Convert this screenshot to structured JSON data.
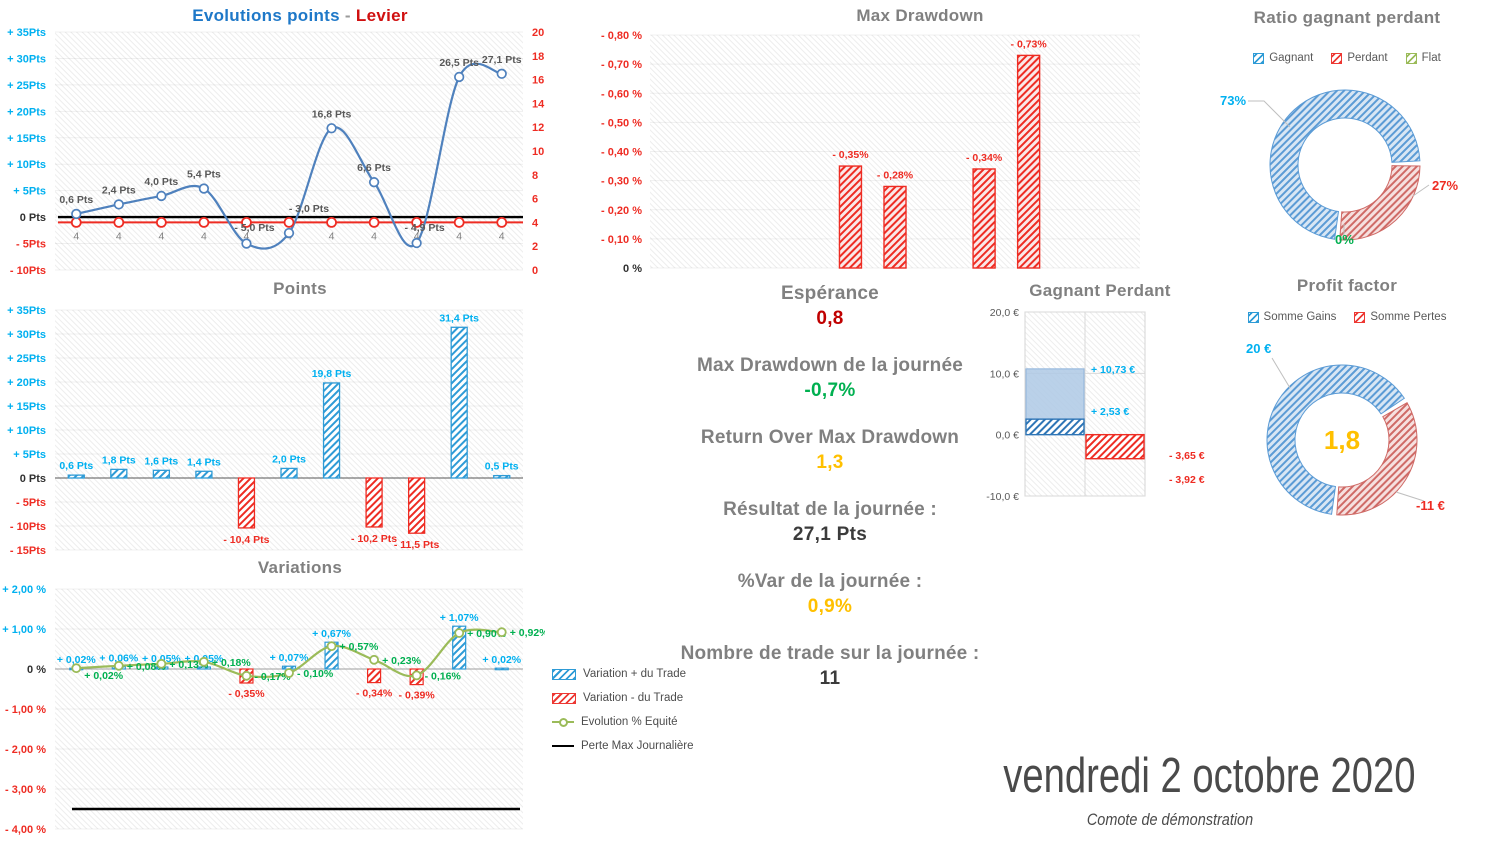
{
  "colors": {
    "cyan": "#00B0F0",
    "blue_bar": "#2E9BD6",
    "blue_line": "#4F81BD",
    "blue_dark": "#2E75B6",
    "red": "#EE2C23",
    "red_dark": "#C00000",
    "pink_bg": "#FAE8E8",
    "green": "#00B050",
    "olive": "#9BBB59",
    "gold": "#FFC000",
    "gray_title": "#808080",
    "gray_label": "#7F7F7F",
    "dark": "#404040",
    "slate": "#595959",
    "donut_blue": "#5B9BD5",
    "donut_blue_bg": "#D8E6F4",
    "donut_red": "#CF6A66",
    "donut_red_bg": "#F6E0DF",
    "gagnant_solid": "#AEC9E5"
  },
  "chart_data": [
    {
      "id": "evolutions",
      "type": "line",
      "title_blue": "Evolutions points",
      "title_sep": " - ",
      "title_red": "Levier",
      "y_left": {
        "min": -10,
        "max": 35,
        "step": 5,
        "ticks": [
          35,
          30,
          25,
          20,
          15,
          10,
          5,
          0,
          -5,
          -10
        ],
        "labels": [
          "+ 35Pts",
          "+ 30Pts",
          "+ 25Pts",
          "+ 20Pts",
          "+ 15Pts",
          "+ 10Pts",
          "+ 5Pts",
          "0 Pts",
          "- 5Pts",
          "- 10Pts"
        ]
      },
      "y_right": {
        "min": 0,
        "max": 20,
        "step": 2,
        "ticks": [
          20,
          18,
          16,
          14,
          12,
          10,
          8,
          6,
          4,
          2,
          0
        ],
        "labels": [
          "20",
          "18",
          "16",
          "14",
          "12",
          "10",
          "8",
          "6",
          "4",
          "2",
          "0"
        ]
      },
      "series_points": {
        "values": [
          0.6,
          2.4,
          4.0,
          5.4,
          -5.0,
          -3.0,
          16.8,
          6.6,
          -4.9,
          26.5,
          27.1
        ],
        "labels": [
          "0,6 Pts",
          "2,4 Pts",
          "4,0 Pts",
          "5,4 Pts",
          "- 5,0 Pts",
          "- 3,0 Pts",
          "16,8 Pts",
          "6,6 Pts",
          "- 4,9 Pts",
          "26,5 Pts",
          "27,1 Pts"
        ],
        "label_pos": [
          "above",
          "above",
          "above",
          "above",
          "left-low",
          "on-zero",
          "above",
          "above",
          "left-low",
          "above",
          "above"
        ]
      },
      "series_levier": {
        "value": 4,
        "label": "4"
      },
      "zero_line": 0
    },
    {
      "id": "points",
      "type": "bar",
      "title": "Points",
      "y": {
        "min": -15,
        "max": 35,
        "step": 5,
        "ticks": [
          35,
          30,
          25,
          20,
          15,
          10,
          5,
          0,
          -5,
          -10,
          -15
        ],
        "labels": [
          "+ 35Pts",
          "+ 30Pts",
          "+ 25Pts",
          "+ 20Pts",
          "+ 15Pts",
          "+ 10Pts",
          "+ 5Pts",
          "0 Pts",
          "- 5Pts",
          "- 10Pts",
          "- 15Pts"
        ]
      },
      "values": [
        0.6,
        1.8,
        1.6,
        1.4,
        -10.4,
        2.0,
        19.8,
        -10.2,
        -11.5,
        31.4,
        0.5
      ],
      "labels": [
        "0,6 Pts",
        "1,8 Pts",
        "1,6 Pts",
        "1,4 Pts",
        "- 10,4 Pts",
        "2,0 Pts",
        "19,8 Pts",
        "- 10,2 Pts",
        "- 11,5 Pts",
        "31,4 Pts",
        "0,5 Pts"
      ]
    },
    {
      "id": "variations",
      "type": "bar+line",
      "title": "Variations",
      "y": {
        "min": -4,
        "max": 2,
        "step": 1,
        "ticks": [
          2,
          1,
          0,
          -1,
          -2,
          -3,
          -4
        ],
        "labels": [
          "+ 2,00 %",
          "+ 1,00 %",
          "0 %",
          "- 1,00 %",
          "- 2,00 %",
          "- 3,00 %",
          "- 4,00 %"
        ]
      },
      "bars": {
        "values": [
          0.02,
          0.06,
          0.05,
          0.05,
          -0.35,
          0.07,
          0.67,
          -0.34,
          -0.39,
          1.07,
          0.02
        ],
        "labels": [
          "+ 0,02%",
          "+ 0,06%",
          "+ 0,05%",
          "+ 0,05%",
          "- 0,35%",
          "+ 0,07%",
          "+ 0,67%",
          "- 0,34%",
          "- 0,39%",
          "+ 1,07%",
          "+ 0,02%"
        ]
      },
      "equity": {
        "values": [
          0.02,
          0.08,
          0.13,
          0.18,
          -0.17,
          -0.1,
          0.57,
          0.23,
          -0.16,
          0.9,
          0.92
        ],
        "labels": [
          "+ 0,02%",
          "+ 0,08%",
          "+ 0,13%",
          "+ 0,18%",
          "- 0,17%",
          "- 0,10%",
          "+ 0,57%",
          "+ 0,23%",
          "- 0,16%",
          "+ 0,90%",
          "+ 0,92%"
        ]
      },
      "perte_max_journaliere": -3.5,
      "legend": [
        "Variation + du Trade",
        "Variation - du Trade",
        "Evolution % Equité",
        "Perte Max Journalière"
      ]
    },
    {
      "id": "maxdrawdown",
      "type": "bar",
      "title": "Max Drawdown",
      "y": {
        "min": -0.8,
        "max": 0,
        "step": 0.1,
        "ticks": [
          0.8,
          0.7,
          0.6,
          0.5,
          0.4,
          0.3,
          0.2,
          0.1,
          0
        ],
        "labels": [
          "- 0,80 %",
          "- 0,70 %",
          "- 0,60 %",
          "- 0,50 %",
          "- 0,40 %",
          "- 0,30 %",
          "- 0,20 %",
          "- 0,10 %",
          "0 %"
        ]
      },
      "slots": 11,
      "bars": [
        {
          "slot": 5,
          "value": 0.35,
          "label": "- 0,35%"
        },
        {
          "slot": 6,
          "value": 0.28,
          "label": "- 0,28%"
        },
        {
          "slot": 8,
          "value": 0.34,
          "label": "- 0,34%"
        },
        {
          "slot": 9,
          "value": 0.73,
          "label": "- 0,73%"
        }
      ]
    },
    {
      "id": "gagnant_perdant",
      "type": "stacked-bar",
      "title": "Gagnant Perdant",
      "y": {
        "min": -10,
        "max": 20,
        "ticks": [
          20,
          10,
          0,
          -10
        ],
        "labels": [
          "20,0 €",
          "10,0 €",
          "0,0 €",
          "-10,0 €"
        ]
      },
      "gain": {
        "avg": 2.53,
        "max": 10.73,
        "label_max": "+ 10,73 €",
        "label_avg": "+ 2,53 €"
      },
      "loss": {
        "avg": -3.65,
        "max": -3.92,
        "label_avg": "- 3,65 €",
        "label_max": "- 3,92 €"
      }
    },
    {
      "id": "ratio_gagnant_perdant",
      "type": "donut",
      "title": "Ratio gagnant perdant",
      "legend": [
        "Gagnant",
        "Perdant",
        "Flat"
      ],
      "slices": [
        {
          "name": "Gagnant",
          "pct": 73,
          "label": "73%"
        },
        {
          "name": "Perdant",
          "pct": 27,
          "label": "27%"
        },
        {
          "name": "Flat",
          "pct": 0,
          "label": "0%"
        }
      ]
    },
    {
      "id": "profit_factor",
      "type": "donut",
      "title": "Profit factor",
      "legend": [
        "Somme Gains",
        "Somme Pertes"
      ],
      "center_value": "1,8",
      "slices": [
        {
          "name": "Somme Gains",
          "value": 20,
          "pct": 64.5,
          "label": "20 €"
        },
        {
          "name": "Somme Pertes",
          "value": -11,
          "pct": 35.5,
          "label": "-11 €"
        }
      ]
    }
  ],
  "stats": [
    {
      "title": "Espérance",
      "value": "0,8",
      "color": "#C00000"
    },
    {
      "title": "Max Drawdown de la journée",
      "value": "-0,7%",
      "color": "#00B050"
    },
    {
      "title": "Return Over Max Drawdown",
      "value": "1,3",
      "color": "#FFC000"
    },
    {
      "title": "Résultat de la journée :",
      "value": "27,1 Pts",
      "color": "#3b3b3b"
    },
    {
      "title": "%Var de la journée :",
      "value": "0,9%",
      "color": "#FFC000"
    },
    {
      "title": "Nombre de trade sur la journée :",
      "value": "11",
      "color": "#3b3b3b"
    }
  ],
  "footer": {
    "date": "vendredi 2 octobre 2020",
    "subtitle": "Comote de démonstration"
  }
}
